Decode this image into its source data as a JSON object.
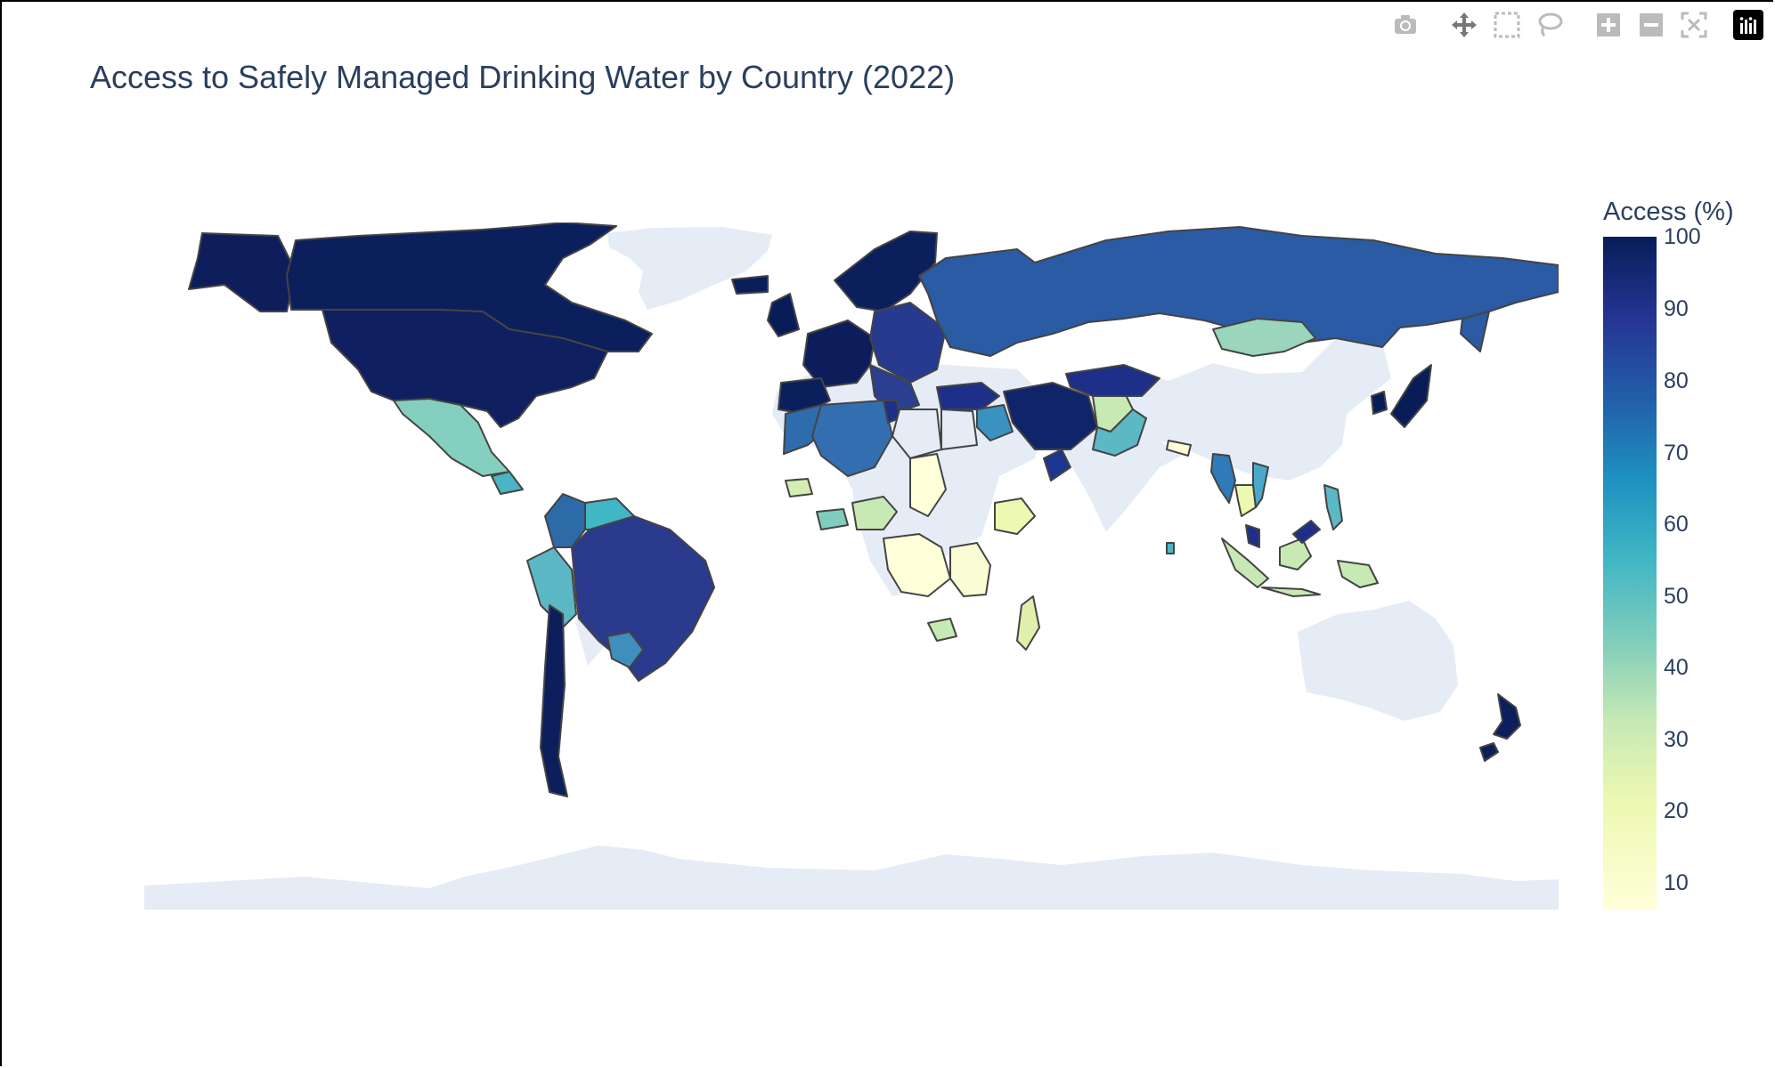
{
  "title": "Access to Safely Managed Drinking Water by Country (2022)",
  "colorbar": {
    "title": "Access (%)",
    "ticks": [
      "100",
      "90",
      "80",
      "70",
      "60",
      "50",
      "40",
      "30",
      "20",
      "10"
    ],
    "range": [
      6,
      100
    ],
    "colorscale": [
      "#ffffd9",
      "#edf8b1",
      "#c7e9b4",
      "#7fcdbb",
      "#41b6c4",
      "#1d91c0",
      "#225ea8",
      "#253494",
      "#081d58"
    ]
  },
  "modebar": [
    "camera-icon",
    "pan-icon",
    "box-select-icon",
    "lasso-icon",
    "zoom-in-icon",
    "zoom-out-icon",
    "reset-axes-icon",
    "plotly-logo-icon"
  ],
  "chart_data": {
    "type": "choropleth",
    "projection": "equirectangular",
    "land_color": "#e5ecf6",
    "border_color": "#444444",
    "countries": [
      {
        "name": "Canada",
        "value": 99
      },
      {
        "name": "United States",
        "value": 97
      },
      {
        "name": "Mexico",
        "value": 43
      },
      {
        "name": "Guatemala",
        "value": 56
      },
      {
        "name": "Brazil",
        "value": 86
      },
      {
        "name": "Colombia",
        "value": 73
      },
      {
        "name": "Venezuela",
        "value": 60
      },
      {
        "name": "Peru",
        "value": 52
      },
      {
        "name": "Chile",
        "value": 99
      },
      {
        "name": "Paraguay",
        "value": 64
      },
      {
        "name": "Russia",
        "value": 76
      },
      {
        "name": "Mongolia",
        "value": 40
      },
      {
        "name": "Japan",
        "value": 98
      },
      {
        "name": "South Korea",
        "value": 98
      },
      {
        "name": "Iran",
        "value": 94
      },
      {
        "name": "Afghanistan",
        "value": 30
      },
      {
        "name": "Pakistan",
        "value": 47
      },
      {
        "name": "Algeria",
        "value": 72
      },
      {
        "name": "Morocco",
        "value": 74
      },
      {
        "name": "Nigeria",
        "value": 30
      },
      {
        "name": "Ghana",
        "value": 41
      },
      {
        "name": "Ethiopia",
        "value": 13
      },
      {
        "name": "DR Congo",
        "value": 12
      },
      {
        "name": "Madagascar",
        "value": 22
      },
      {
        "name": "Myanmar",
        "value": 57
      },
      {
        "name": "Indonesia",
        "value": 30
      },
      {
        "name": "Malaysia",
        "value": 94
      },
      {
        "name": "New Zealand",
        "value": 100
      },
      {
        "name": "Australia",
        "value": null
      },
      {
        "name": "China",
        "value": null
      },
      {
        "name": "India",
        "value": null
      },
      {
        "name": "Greenland",
        "value": null
      },
      {
        "name": "Antarctica",
        "value": null
      }
    ]
  }
}
